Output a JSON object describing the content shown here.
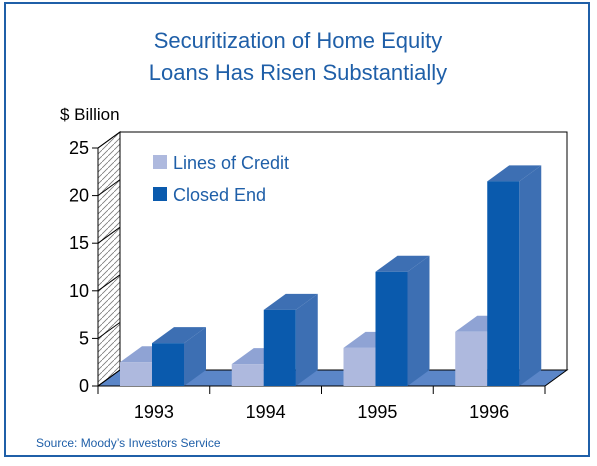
{
  "chart_data": {
    "type": "bar",
    "title_line1": "Securitization of Home Equity",
    "title_line2": "Loans Has Risen Substantially",
    "ylabel": "$ Billion",
    "categories": [
      "1993",
      "1994",
      "1995",
      "1996"
    ],
    "series": [
      {
        "name": "Lines of Credit",
        "values": [
          2.5,
          2.3,
          4.0,
          5.7
        ],
        "color": "#aeb9de"
      },
      {
        "name": "Closed End",
        "values": [
          4.5,
          8.0,
          12.0,
          21.5
        ],
        "color": "#0a5aad"
      }
    ],
    "yticks": [
      "0",
      "5",
      "10",
      "15",
      "20",
      "25"
    ],
    "ylim": [
      0,
      25
    ],
    "legend_position": "top-left",
    "grid": false,
    "source": "Source:  Moody’s Investors Service",
    "colors": {
      "accent": "#1f5fa8",
      "floor": "#5b86c8",
      "side_dark": "#3d6fb3",
      "side_light": "#7d93cc",
      "top_light": "#8fa3d4"
    }
  }
}
